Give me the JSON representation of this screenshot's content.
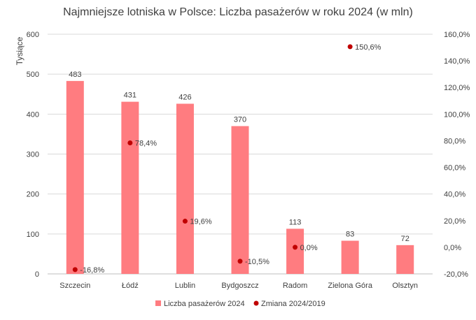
{
  "chart_data": {
    "type": "bar",
    "title": "Najmniejsze lotniska w Polsce: Liczba pasażerów w roku 2024 (w mln)",
    "ylabel": "Tysiące",
    "ylim": [
      0,
      600
    ],
    "y_ticks": [
      "0",
      "100",
      "200",
      "300",
      "400",
      "500",
      "600"
    ],
    "y2lim": [
      -20,
      160
    ],
    "y2_ticks": [
      "-20,0%",
      "0,0%",
      "20,0%",
      "40,0%",
      "60,0%",
      "80,0%",
      "100,0%",
      "120,0%",
      "140,0%",
      "160,0%"
    ],
    "grid": true,
    "legend_position": "bottom",
    "categories": [
      "Szczecin",
      "Łódź",
      "Lublin",
      "Bydgoszcz",
      "Radom",
      "Zielona Góra",
      "Olsztyn"
    ],
    "series": [
      {
        "name": "Liczba pasażerów 2024",
        "type": "bar",
        "axis": "left",
        "color": "#ff7c80",
        "values": [
          483,
          431,
          426,
          370,
          113,
          83,
          72
        ],
        "labels": [
          "483",
          "431",
          "426",
          "370",
          "113",
          "83",
          "72"
        ]
      },
      {
        "name": "Zmiana 2024/2019",
        "type": "scatter",
        "axis": "right",
        "color": "#c00000",
        "values": [
          -16.8,
          78.4,
          19.6,
          -10.5,
          0.0,
          150.6,
          null
        ],
        "labels": [
          "-16,8%",
          "78,4%",
          "19,6%",
          "-10,5%",
          "0,0%",
          "150,6%",
          ""
        ]
      }
    ]
  }
}
